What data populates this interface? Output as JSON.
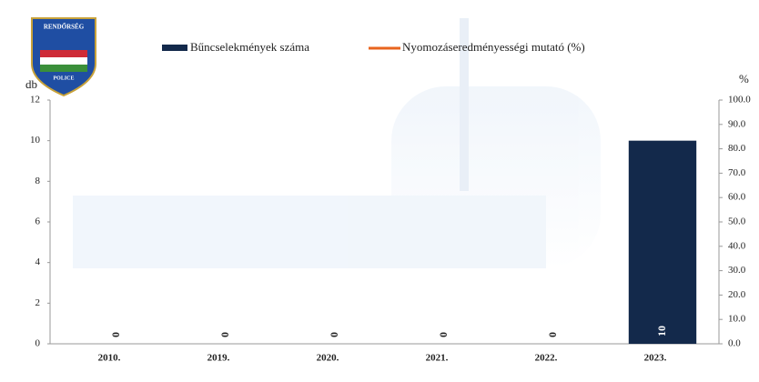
{
  "logo": {
    "top": "RENDŐRSÉG",
    "bottom": "POLICE"
  },
  "chart_data": {
    "type": "bar",
    "categories": [
      "2010.",
      "2019.",
      "2020.",
      "2021.",
      "2022.",
      "2023."
    ],
    "series": [
      {
        "name": "Bűncselekmények száma",
        "color": "#13294b",
        "values": [
          0,
          0,
          0,
          0,
          0,
          10
        ]
      },
      {
        "name": "Nyomozáseredményességi mutató (%)",
        "color": "#e8641e",
        "axis": "y2",
        "type": "line",
        "values": [
          null,
          null,
          null,
          null,
          null,
          null
        ]
      }
    ],
    "ylabel": "db",
    "y2label": "%",
    "ylim": [
      0,
      12
    ],
    "yticks": [
      0,
      2,
      4,
      6,
      8,
      10,
      12
    ],
    "y2lim": [
      0,
      100
    ],
    "y2ticks": [
      {
        "value": 0,
        "label": "0.0"
      },
      {
        "value": 10,
        "label": "10.0"
      },
      {
        "value": 20,
        "label": "20.0"
      },
      {
        "value": 30,
        "label": "30.0"
      },
      {
        "value": 40,
        "label": "40.0"
      },
      {
        "value": 50,
        "label": "50.0"
      },
      {
        "value": 60,
        "label": "60.0"
      },
      {
        "value": 70,
        "label": "70.0"
      },
      {
        "value": 80,
        "label": "80.0"
      },
      {
        "value": 90,
        "label": "90.0"
      },
      {
        "value": 100,
        "label": "100.0"
      }
    ],
    "legend": "top"
  }
}
